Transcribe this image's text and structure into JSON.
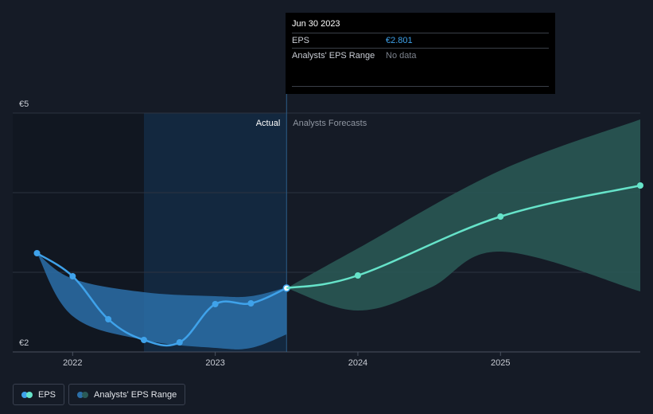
{
  "chart_data": {
    "type": "line",
    "y_labels": [
      "€5",
      "€2"
    ],
    "ylim": [
      2,
      5
    ],
    "xlim": [
      2021.58,
      2025.98
    ],
    "x_ticks": [
      {
        "x": 2022,
        "label": "2022"
      },
      {
        "x": 2023,
        "label": "2023"
      },
      {
        "x": 2024,
        "label": "2024"
      },
      {
        "x": 2025,
        "label": "2025"
      }
    ],
    "region_labels": {
      "actual": "Actual",
      "forecast": "Analysts Forecasts"
    },
    "divider_x": 2023.5,
    "highlight_start_x": 2022.5,
    "series": [
      {
        "name": "EPS",
        "color": "#3fa2ea",
        "points": [
          {
            "x": 2021.75,
            "y": 3.24
          },
          {
            "x": 2022.0,
            "y": 2.95
          },
          {
            "x": 2022.25,
            "y": 2.41
          },
          {
            "x": 2022.5,
            "y": 2.15
          },
          {
            "x": 2022.75,
            "y": 2.12
          },
          {
            "x": 2023.0,
            "y": 2.6
          },
          {
            "x": 2023.25,
            "y": 2.61
          },
          {
            "x": 2023.5,
            "y": 2.801
          }
        ]
      },
      {
        "name": "EPS forecast",
        "color": "#66e3c9",
        "points": [
          {
            "x": 2023.5,
            "y": 2.801
          },
          {
            "x": 2024.0,
            "y": 2.96
          },
          {
            "x": 2025.0,
            "y": 3.7
          },
          {
            "x": 2025.98,
            "y": 4.09
          }
        ]
      }
    ],
    "range_actual": {
      "color": "#2b6fa8",
      "upper": [
        [
          2021.75,
          3.24
        ],
        [
          2022.0,
          2.92
        ],
        [
          2022.5,
          2.75
        ],
        [
          2023.0,
          2.7
        ],
        [
          2023.25,
          2.7
        ],
        [
          2023.5,
          2.81
        ]
      ],
      "lower": [
        [
          2021.75,
          3.24
        ],
        [
          2022.0,
          2.45
        ],
        [
          2022.5,
          2.15
        ],
        [
          2023.0,
          2.05
        ],
        [
          2023.25,
          2.05
        ],
        [
          2023.5,
          2.22
        ]
      ]
    },
    "range_forecast": {
      "color": "#2a5a57",
      "upper": [
        [
          2023.5,
          2.801
        ],
        [
          2024.0,
          3.3
        ],
        [
          2025.0,
          4.28
        ],
        [
          2025.98,
          4.92
        ]
      ],
      "lower": [
        [
          2023.5,
          2.801
        ],
        [
          2024.0,
          2.52
        ],
        [
          2024.5,
          2.8
        ],
        [
          2025.0,
          3.26
        ],
        [
          2025.98,
          2.76
        ]
      ]
    },
    "grid": true,
    "legend_position": "bottom-left"
  },
  "tooltip": {
    "date": "Jun 30 2023",
    "eps_label": "EPS",
    "eps_value": "€2.801",
    "range_label": "Analysts' EPS Range",
    "range_value": "No data"
  },
  "legend": {
    "eps_label": "EPS",
    "range_label": "Analysts' EPS Range",
    "eps_color_a": "#3fa2ea",
    "eps_color_b": "#66e3c9",
    "range_color_a": "#2b6fa8",
    "range_color_b": "#2a5a57"
  }
}
